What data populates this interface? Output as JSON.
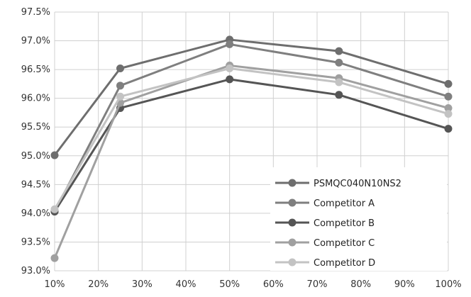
{
  "chart_data": {
    "type": "line",
    "title": "",
    "xlabel": "",
    "ylabel": "",
    "x": [
      10,
      25,
      50,
      75,
      100
    ],
    "x_ticks": [
      "10%",
      "20%",
      "30%",
      "40%",
      "50%",
      "60%",
      "70%",
      "80%",
      "90%",
      "100%"
    ],
    "x_tick_values": [
      10,
      20,
      30,
      40,
      50,
      60,
      70,
      80,
      90,
      100
    ],
    "y_ticks": [
      "93.0%",
      "93.5%",
      "94.0%",
      "94.5%",
      "95.0%",
      "95.5%",
      "96.0%",
      "96.5%",
      "97.0%",
      "97.5%"
    ],
    "y_tick_values": [
      93.0,
      93.5,
      94.0,
      94.5,
      95.0,
      95.5,
      96.0,
      96.5,
      97.0,
      97.5
    ],
    "xlim": [
      10,
      100
    ],
    "ylim": [
      93.0,
      97.5
    ],
    "grid": true,
    "legend_position": "bottom-right",
    "series": [
      {
        "name": "PSMQC040N10NS2",
        "color": "#6e6e6e",
        "values": [
          95.01,
          96.52,
          97.02,
          96.82,
          96.25
        ]
      },
      {
        "name": "Competitor A",
        "color": "#7f7f7f",
        "values": [
          94.03,
          96.22,
          96.94,
          96.62,
          96.03
        ]
      },
      {
        "name": "Competitor B",
        "color": "#555555",
        "values": [
          94.03,
          95.83,
          96.33,
          96.06,
          95.47
        ]
      },
      {
        "name": "Competitor C",
        "color": "#a0a0a0",
        "values": [
          93.22,
          95.92,
          96.57,
          96.35,
          95.83
        ]
      },
      {
        "name": "Competitor D",
        "color": "#c3c3c3",
        "values": [
          94.07,
          96.03,
          96.52,
          96.28,
          95.73
        ]
      }
    ]
  }
}
